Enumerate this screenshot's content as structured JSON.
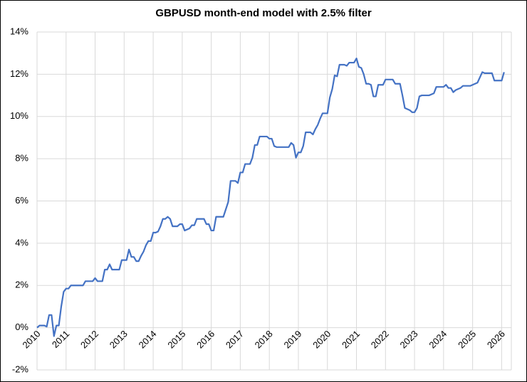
{
  "chart_data": {
    "type": "line",
    "title": "GBPUSD month-end  model  with 2.5%  filter",
    "categories": [
      "2010",
      null,
      null,
      null,
      null,
      null,
      null,
      null,
      null,
      null,
      null,
      null,
      "2011",
      null,
      null,
      null,
      null,
      null,
      null,
      null,
      null,
      null,
      null,
      null,
      "2012",
      null,
      null,
      null,
      null,
      null,
      null,
      null,
      null,
      null,
      null,
      null,
      "2013",
      null,
      null,
      null,
      null,
      null,
      null,
      null,
      null,
      null,
      null,
      null,
      "2014",
      null,
      null,
      null,
      null,
      null,
      null,
      null,
      null,
      null,
      null,
      null,
      "2015",
      null,
      null,
      null,
      null,
      null,
      null,
      null,
      null,
      null,
      null,
      null,
      "2016",
      null,
      null,
      null,
      null,
      null,
      null,
      null,
      null,
      null,
      null,
      null,
      "2017",
      null,
      null,
      null,
      null,
      null,
      null,
      null,
      null,
      null,
      null,
      null,
      "2018",
      null,
      null,
      null,
      null,
      null,
      null,
      null,
      null,
      null,
      null,
      null,
      "2019",
      null,
      null,
      null,
      null,
      null,
      null,
      null,
      null,
      null,
      null,
      null,
      "2020",
      null,
      null,
      null,
      null,
      null,
      null,
      null,
      null,
      null,
      null,
      null,
      "2021",
      null,
      null,
      null,
      null,
      null,
      null,
      null,
      null,
      null,
      null,
      null,
      "2022",
      null,
      null,
      null,
      null,
      null,
      null,
      null,
      null,
      null,
      null,
      null,
      "2023",
      null,
      null,
      null,
      null,
      null,
      null,
      null,
      null,
      null,
      null,
      null,
      "2024",
      null,
      null,
      null,
      null,
      null,
      null,
      null,
      null,
      null,
      null,
      null,
      "2025",
      null,
      null,
      null,
      null,
      null,
      null,
      null,
      null,
      null,
      null,
      null,
      "2026",
      null,
      null,
      null
    ],
    "values": [
      0,
      0.1,
      0.1,
      0.1,
      0.05,
      0.6,
      0.6,
      -0.4,
      0.1,
      0.1,
      1.0,
      1.7,
      1.85,
      1.85,
      2.0,
      2.0,
      2.0,
      2.0,
      2.0,
      2.0,
      2.2,
      2.2,
      2.2,
      2.2,
      2.35,
      2.2,
      2.2,
      2.2,
      2.75,
      2.75,
      3.0,
      2.75,
      2.75,
      2.75,
      2.75,
      3.2,
      3.2,
      3.2,
      3.7,
      3.35,
      3.35,
      3.15,
      3.15,
      3.4,
      3.6,
      3.9,
      4.1,
      4.1,
      4.5,
      4.5,
      4.55,
      4.8,
      5.15,
      5.15,
      5.25,
      5.15,
      4.8,
      4.8,
      4.8,
      4.9,
      4.9,
      4.6,
      4.65,
      4.7,
      4.85,
      4.85,
      5.15,
      5.15,
      5.15,
      5.15,
      4.9,
      4.9,
      4.6,
      4.6,
      5.25,
      5.25,
      5.25,
      5.25,
      5.6,
      5.95,
      6.95,
      6.95,
      6.95,
      6.85,
      7.35,
      7.35,
      7.75,
      7.75,
      7.75,
      8.05,
      8.65,
      8.65,
      9.05,
      9.05,
      9.05,
      9.05,
      8.95,
      8.95,
      8.6,
      8.55,
      8.55,
      8.55,
      8.55,
      8.55,
      8.55,
      8.75,
      8.65,
      8.05,
      8.3,
      8.3,
      8.6,
      9.25,
      9.25,
      9.25,
      9.15,
      9.4,
      9.6,
      9.9,
      10.15,
      10.15,
      10.15,
      10.9,
      11.3,
      11.95,
      11.9,
      12.45,
      12.45,
      12.45,
      12.4,
      12.55,
      12.55,
      12.55,
      12.75,
      12.35,
      12.3,
      12.0,
      11.55,
      11.55,
      11.5,
      10.95,
      10.95,
      11.5,
      11.5,
      11.5,
      11.75,
      11.75,
      11.75,
      11.75,
      11.55,
      11.55,
      11.55,
      11.0,
      10.4,
      10.35,
      10.3,
      10.2,
      10.2,
      10.4,
      10.95,
      11.0,
      11.0,
      11.0,
      11.0,
      11.05,
      11.1,
      11.4,
      11.4,
      11.4,
      11.4,
      11.5,
      11.35,
      11.35,
      11.15,
      11.25,
      11.3,
      11.35,
      11.45,
      11.45,
      11.45,
      11.45,
      11.5,
      11.55,
      11.6,
      11.85,
      12.1,
      12.05,
      12.05,
      12.05,
      12.05,
      11.7,
      11.7,
      11.7,
      11.7,
      12.1,
      null,
      null
    ],
    "color": "#4472c4",
    "ylim": [
      -2,
      14
    ],
    "yticks": [
      {
        "value": -2,
        "label": "-2%"
      },
      {
        "value": 0,
        "label": "0%"
      },
      {
        "value": 2,
        "label": "2%"
      },
      {
        "value": 4,
        "label": "4%"
      },
      {
        "value": 6,
        "label": "6%"
      },
      {
        "value": 8,
        "label": "8%"
      },
      {
        "value": 10,
        "label": "10%"
      },
      {
        "value": 12,
        "label": "12%"
      },
      {
        "value": 14,
        "label": "14%"
      }
    ],
    "grid": true
  }
}
